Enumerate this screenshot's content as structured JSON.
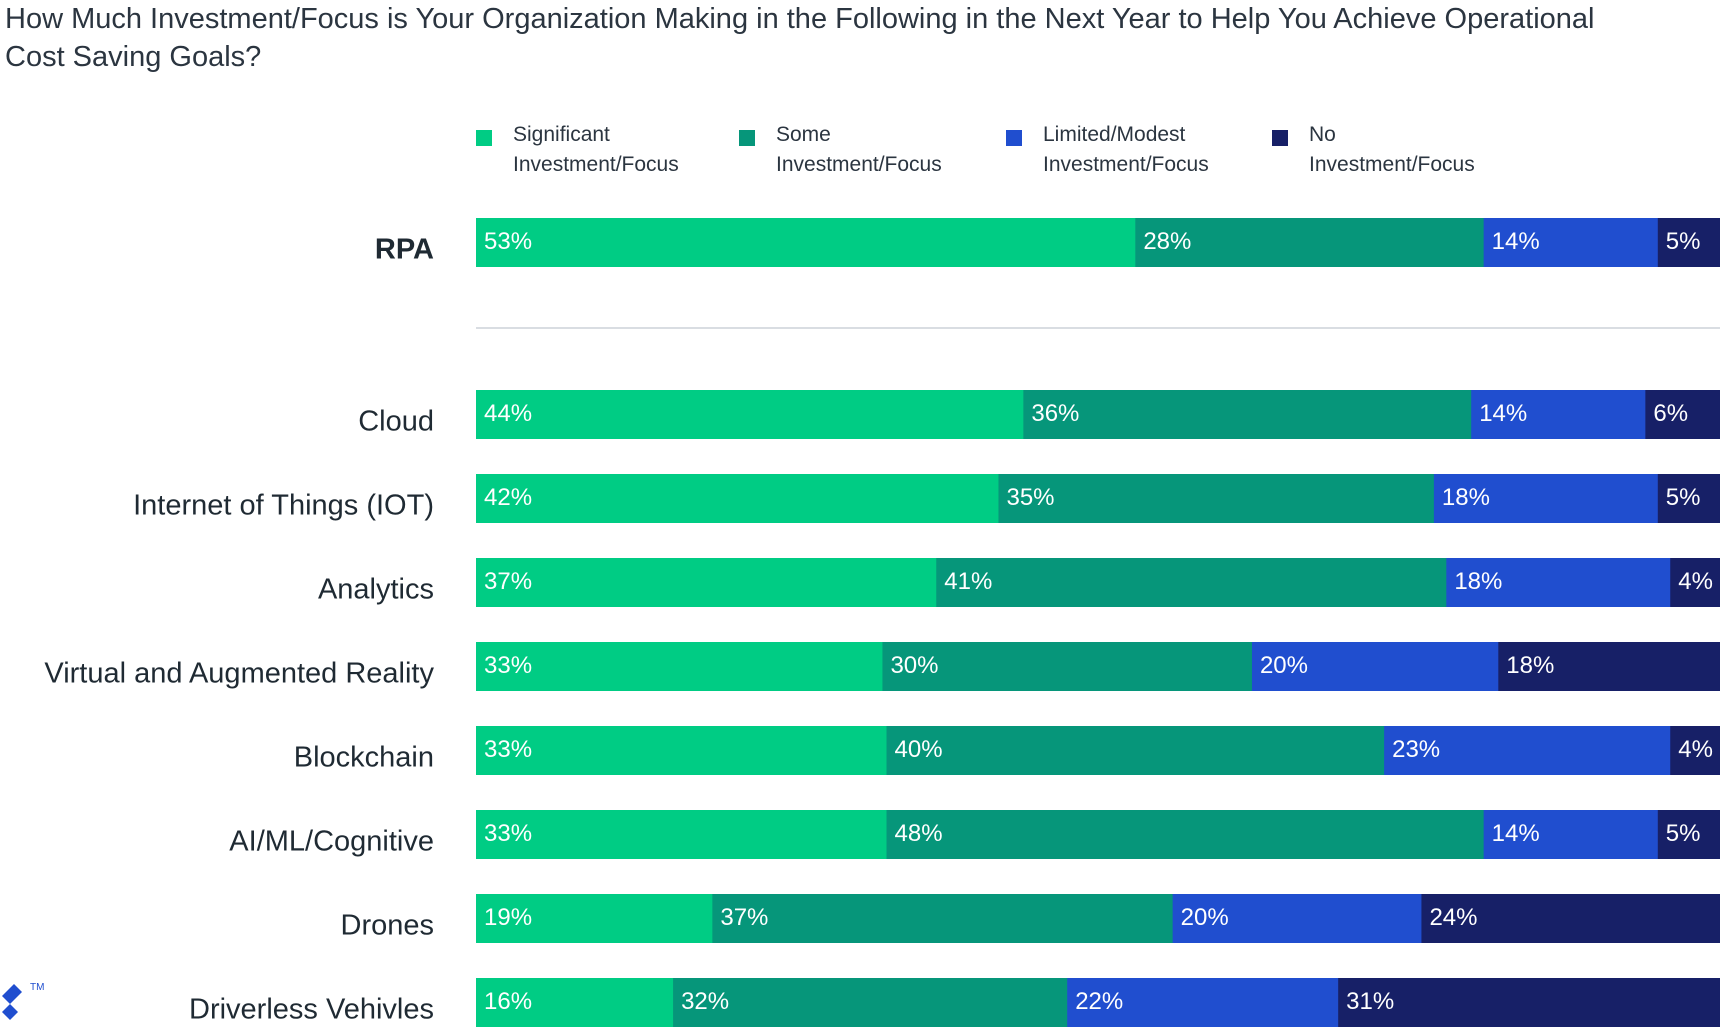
{
  "title": "How Much Investment/Focus is Your Organization Making in the Following in the Next Year to Help You Achieve Operational Cost Saving Goals?",
  "logo": {
    "mark": "TM"
  },
  "legend": [
    {
      "label": "Significant\nInvestment/Focus",
      "color": "#00cc84"
    },
    {
      "label": "Some\nInvestment/Focus",
      "color": "#06967a"
    },
    {
      "label": "Limited/Modest\nInvestment/Focus",
      "color": "#204ecf"
    },
    {
      "label": "No\nInvestment/Focus",
      "color": "#172067"
    }
  ],
  "chart_data": {
    "type": "bar",
    "orientation": "horizontal",
    "stacked": true,
    "xlim": [
      0,
      100
    ],
    "grid": false,
    "legend_position": "top",
    "categories": [
      "RPA",
      "Cloud",
      "Internet of Things (IOT)",
      "Analytics",
      "Virtual and Augmented Reality",
      "Blockchain",
      "AI/ML/Cognitive",
      "Drones",
      "Driverless Vehivles"
    ],
    "highlight_category": "RPA",
    "series": [
      {
        "name": "Significant Investment/Focus",
        "color": "#00cc84",
        "values": [
          53,
          44,
          42,
          37,
          33,
          33,
          33,
          19,
          16
        ],
        "labels": [
          "53%",
          "44%",
          "42%",
          "37%",
          "33%",
          "33%",
          "33%",
          "19%",
          "16%"
        ]
      },
      {
        "name": "Some Investment/Focus",
        "color": "#06967a",
        "values": [
          28,
          36,
          35,
          41,
          30,
          40,
          48,
          37,
          32
        ],
        "labels": [
          "28%",
          "36%",
          "35%",
          "41%",
          "30%",
          "40%",
          "48%",
          "37%",
          "32%"
        ]
      },
      {
        "name": "Limited/Modest Investment/Focus",
        "color": "#204ecf",
        "values": [
          14,
          14,
          18,
          18,
          20,
          23,
          14,
          20,
          22
        ],
        "labels": [
          "14%",
          "14%",
          "18%",
          "18%",
          "20%",
          "23%",
          "14%",
          "20%",
          "22%"
        ]
      },
      {
        "name": "No Investment/Focus",
        "color": "#172067",
        "values": [
          5,
          6,
          5,
          4,
          18,
          4,
          5,
          24,
          31
        ],
        "labels": [
          "5%",
          "6%",
          "5%",
          "4%",
          "18%",
          "4%",
          "5%",
          "24%",
          "31%"
        ]
      }
    ]
  }
}
